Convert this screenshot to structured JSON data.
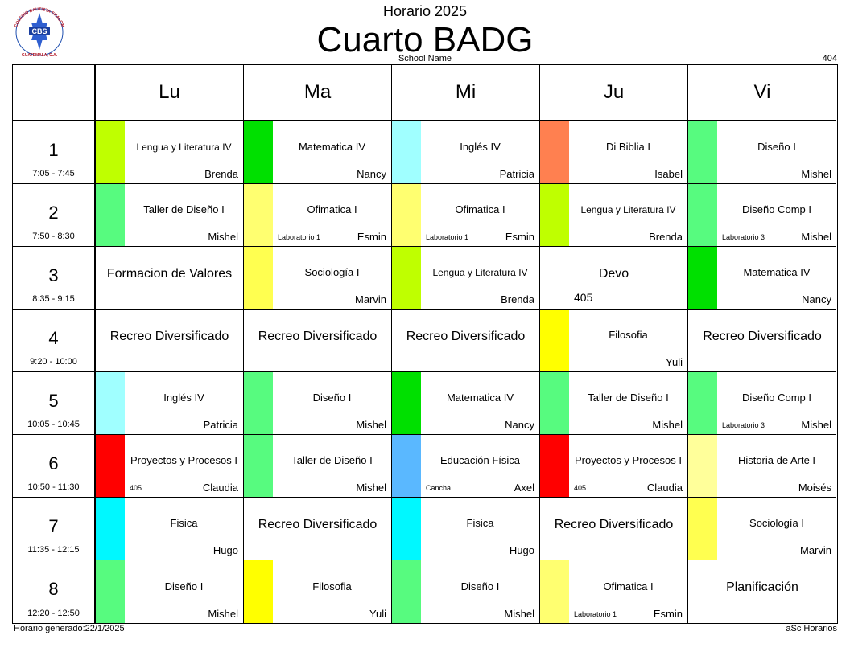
{
  "header": {
    "logo_text": {
      "top": "COLEGIO BAUTISTA SHALOM",
      "mid": "CBS",
      "sub": "Shalom",
      "bottom": "GUATEMALA, C.A."
    },
    "top_title": "Horario 2025",
    "main_title": "Cuarto BADG",
    "school_name": "School Name",
    "room_code": "404"
  },
  "days": [
    "Lu",
    "Ma",
    "Mi",
    "Ju",
    "Vi"
  ],
  "periods": [
    {
      "num": "1",
      "time": "7:05 - 7:45"
    },
    {
      "num": "2",
      "time": "7:50 - 8:30"
    },
    {
      "num": "3",
      "time": "8:35 - 9:15"
    },
    {
      "num": "4",
      "time": "9:20 - 10:00"
    },
    {
      "num": "5",
      "time": "10:05 - 10:45"
    },
    {
      "num": "6",
      "time": "10:50 - 11:30"
    },
    {
      "num": "7",
      "time": "11:35 - 12:15"
    },
    {
      "num": "8",
      "time": "12:20 - 12:50"
    }
  ],
  "schedule": [
    [
      {
        "subject": "Lengua  y Literatura IV",
        "teacher": "Brenda",
        "room": "",
        "color": "#bfff00",
        "small": true
      },
      {
        "subject": "Matematica  IV",
        "teacher": "Nancy",
        "room": "",
        "color": "#00e000"
      },
      {
        "subject": "Inglés  IV",
        "teacher": "Patricia",
        "room": "",
        "color": "#a0ffff"
      },
      {
        "subject": "Di Biblia  I",
        "teacher": "Isabel",
        "room": "",
        "color": "#ff8050"
      },
      {
        "subject": "Diseño  I",
        "teacher": "Mishel",
        "room": "",
        "color": "#57fb7f"
      }
    ],
    [
      {
        "subject": "Taller de  Diseño  I",
        "teacher": "Mishel",
        "room": "",
        "color": "#57fb7f"
      },
      {
        "subject": "Ofimatica  I",
        "teacher": "Esmin",
        "room": "Laboratorio 1",
        "color": "#ffff70"
      },
      {
        "subject": "Ofimatica  I",
        "teacher": "Esmin",
        "room": "Laboratorio 1",
        "color": "#ffff70"
      },
      {
        "subject": "Lengua  y Literatura IV",
        "teacher": "Brenda",
        "room": "",
        "color": "#bfff00",
        "small": true
      },
      {
        "subject": "Diseño  Comp  I",
        "teacher": "Mishel",
        "room": "Laboratorio 3",
        "color": "#57fb7f"
      }
    ],
    [
      {
        "subject": "Formacion de Valores",
        "plain": true
      },
      {
        "subject": "Sociología  I",
        "teacher": "Marvin",
        "room": "",
        "color": "#ffff50"
      },
      {
        "subject": "Lengua  y Literatura IV",
        "teacher": "Brenda",
        "room": "",
        "color": "#bfff00",
        "small": true
      },
      {
        "subject": "Devo",
        "plain": true,
        "room": "405"
      },
      {
        "subject": "Matematica  IV",
        "teacher": "Nancy",
        "room": "",
        "color": "#00e000"
      }
    ],
    [
      {
        "subject": "Recreo Diversificado",
        "plain": true
      },
      {
        "subject": "Recreo Diversificado",
        "plain": true
      },
      {
        "subject": "Recreo Diversificado",
        "plain": true
      },
      {
        "subject": "Filosofia",
        "teacher": "Yuli",
        "room": "",
        "color": "#ffff00"
      },
      {
        "subject": "Recreo Diversificado",
        "plain": true
      }
    ],
    [
      {
        "subject": "Inglés  IV",
        "teacher": "Patricia",
        "room": "",
        "color": "#a0ffff"
      },
      {
        "subject": "Diseño  I",
        "teacher": "Mishel",
        "room": "",
        "color": "#57fb7f"
      },
      {
        "subject": "Matematica  IV",
        "teacher": "Nancy",
        "room": "",
        "color": "#00e000"
      },
      {
        "subject": "Taller de  Diseño  I",
        "teacher": "Mishel",
        "room": "",
        "color": "#57fb7f"
      },
      {
        "subject": "Diseño  Comp  I",
        "teacher": "Mishel",
        "room": "Laboratorio 3",
        "color": "#57fb7f"
      }
    ],
    [
      {
        "subject": "Proyectos  y Procesos I",
        "teacher": "Claudia",
        "room": "405",
        "color": "#ff0000"
      },
      {
        "subject": "Taller de  Diseño  I",
        "teacher": "Mishel",
        "room": "",
        "color": "#57fb7f"
      },
      {
        "subject": "Educación  Física",
        "teacher": "Axel",
        "room": "Cancha",
        "color": "#5ab8ff"
      },
      {
        "subject": "Proyectos  y Procesos I",
        "teacher": "Claudia",
        "room": "405",
        "color": "#ff0000"
      },
      {
        "subject": "Historia  de Arte  I",
        "teacher": "Moisés",
        "room": "",
        "color": "#ffff9a"
      }
    ],
    [
      {
        "subject": "Fisica",
        "teacher": "Hugo",
        "room": "",
        "color": "#00f8ff"
      },
      {
        "subject": "Recreo Diversificado",
        "plain": true
      },
      {
        "subject": "Fisica",
        "teacher": "Hugo",
        "room": "",
        "color": "#00f8ff"
      },
      {
        "subject": "Recreo Diversificado",
        "plain": true
      },
      {
        "subject": "Sociología  I",
        "teacher": "Marvin",
        "room": "",
        "color": "#ffff50"
      }
    ],
    [
      {
        "subject": "Diseño  I",
        "teacher": "Mishel",
        "room": "",
        "color": "#57fb7f"
      },
      {
        "subject": "Filosofia",
        "teacher": "Yuli",
        "room": "",
        "color": "#ffff00"
      },
      {
        "subject": "Diseño  I",
        "teacher": "Mishel",
        "room": "",
        "color": "#57fb7f"
      },
      {
        "subject": "Ofimatica  I",
        "teacher": "Esmin",
        "room": "Laboratorio 1",
        "color": "#ffff70"
      },
      {
        "subject": "Planificación",
        "plain": true
      }
    ]
  ],
  "footer": {
    "generated": "Horario generado:22/1/2025",
    "brand": "aSc Horarios"
  }
}
